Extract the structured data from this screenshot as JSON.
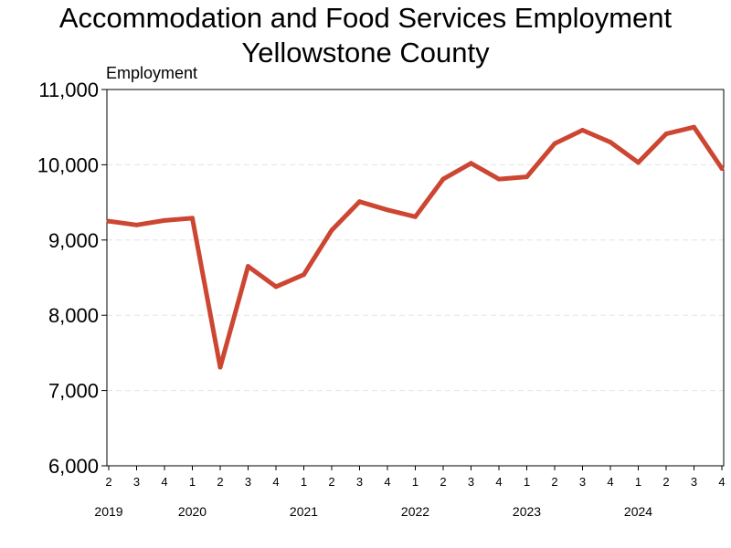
{
  "chart_data": {
    "type": "line",
    "title": "Accommodation and Food Services Employment",
    "subtitle": "Yellowstone County",
    "ylabel": "Employment",
    "xlabel": "",
    "ylim": [
      6000,
      11000
    ],
    "yticks": [
      6000,
      7000,
      8000,
      9000,
      10000,
      11000
    ],
    "ytick_labels": [
      "6,000",
      "7,000",
      "8,000",
      "9,000",
      "10,000",
      "11,000"
    ],
    "grid": "horizontal dashed",
    "legend": "none",
    "color": "#cc4632",
    "x_quarters": [
      "2",
      "3",
      "4",
      "1",
      "2",
      "3",
      "4",
      "1",
      "2",
      "3",
      "4",
      "1",
      "2",
      "3",
      "4",
      "1",
      "2",
      "3",
      "4",
      "1",
      "2",
      "3",
      "4"
    ],
    "x_years": [
      "2019",
      "2020",
      "2021",
      "2022",
      "2023",
      "2024"
    ],
    "year_start_index": [
      0,
      3,
      7,
      11,
      15,
      19
    ],
    "series": [
      {
        "values": [
          9250,
          9200,
          9260,
          9290,
          7310,
          8650,
          8380,
          8540,
          9130,
          9510,
          9400,
          9310,
          9810,
          10020,
          9810,
          9840,
          10280,
          10460,
          10300,
          10030,
          10410,
          10500,
          9950
        ]
      }
    ]
  }
}
